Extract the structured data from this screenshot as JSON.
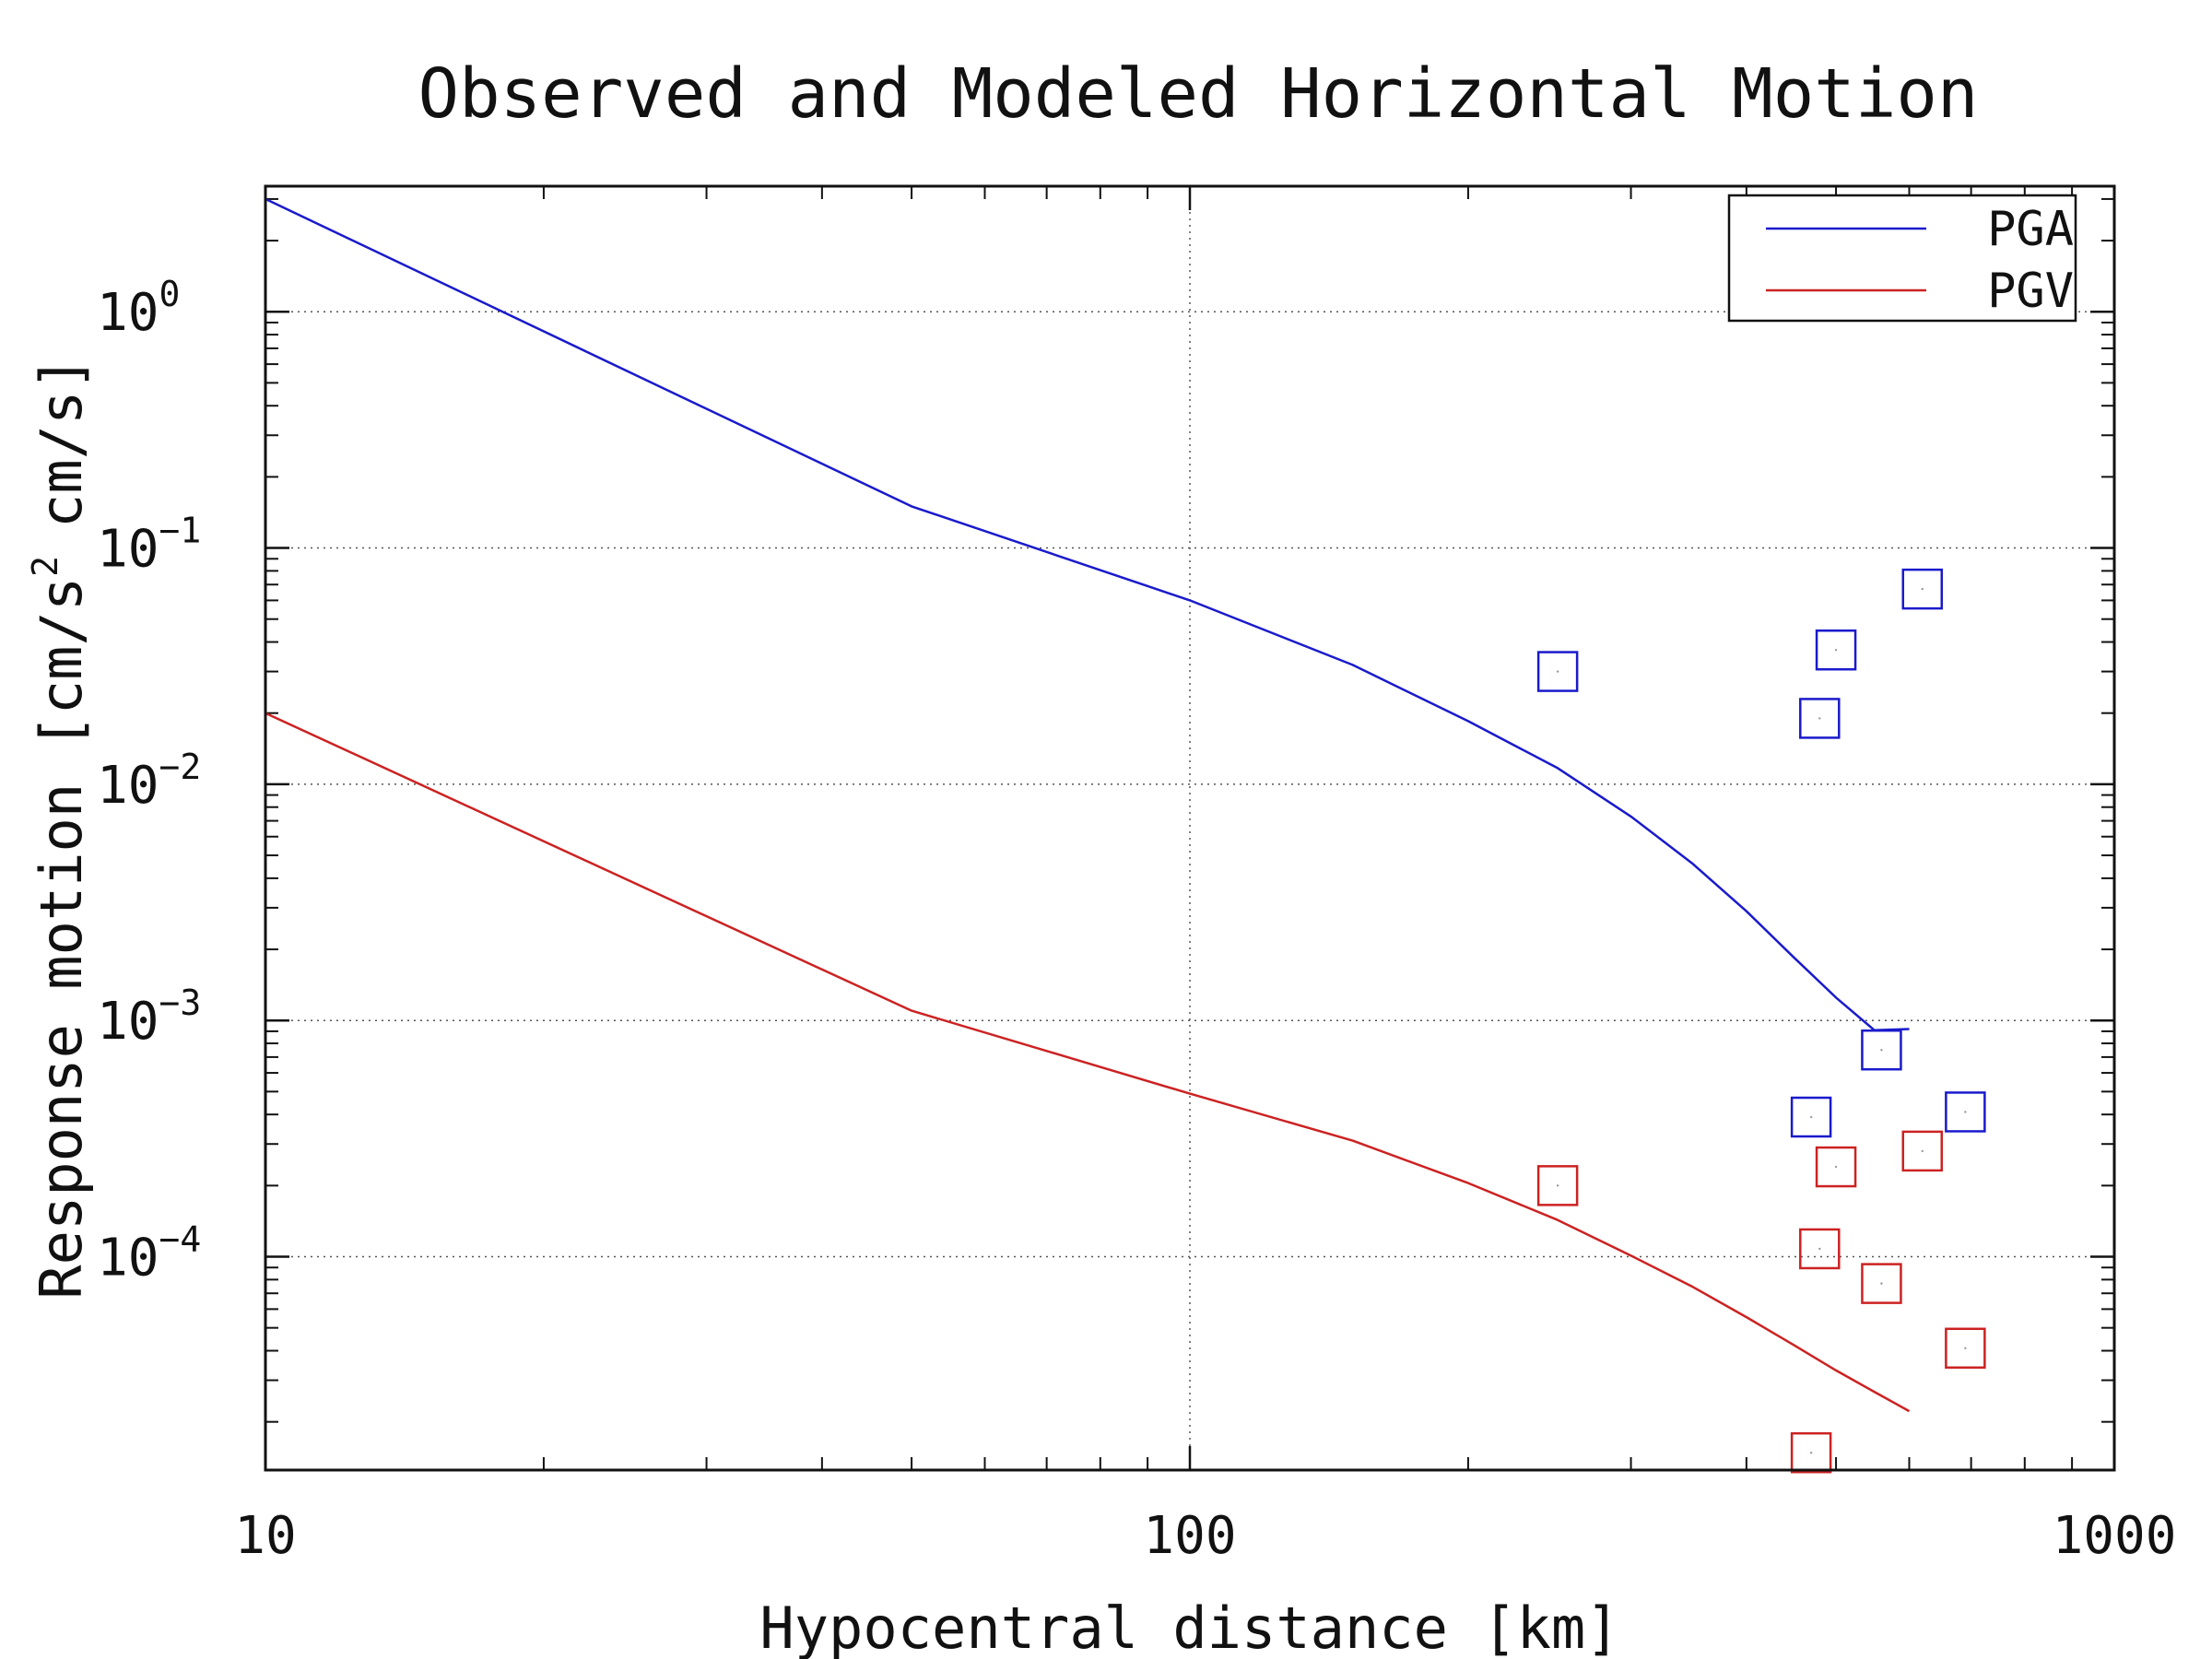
{
  "chart_data": {
    "type": "line",
    "title": "Observed and Modeled Horizontal Motion",
    "xlabel": "Hypocentral distance [km]",
    "ylabel_main": "Response motion [cm/s",
    "ylabel_sup": "2",
    "ylabel_tail": "cm/s]",
    "x_scale": "log",
    "y_scale": "log",
    "xlim": [
      10,
      1000
    ],
    "ylim": [
      1.25e-05,
      3.4
    ],
    "grid": true,
    "legend_position": "top-right",
    "x_ticks": [
      {
        "value": 10,
        "label": "10"
      },
      {
        "value": 100,
        "label": "100"
      },
      {
        "value": 1000,
        "label": "1000"
      }
    ],
    "y_ticks": [
      {
        "value": 1,
        "base": "10",
        "exp": "0"
      },
      {
        "value": 0.1,
        "base": "10",
        "exp": "−1"
      },
      {
        "value": 0.01,
        "base": "10",
        "exp": "−2"
      },
      {
        "value": 0.001,
        "base": "10",
        "exp": "−3"
      },
      {
        "value": 0.0001,
        "base": "10",
        "exp": "−4"
      }
    ],
    "series": [
      {
        "name": "PGA",
        "color": "#1a1acc",
        "line": {
          "x": [
            10,
            50,
            100,
            150,
            200,
            250,
            300,
            350,
            400,
            450,
            500,
            550,
            600
          ],
          "y": [
            3.0,
            0.15,
            0.06,
            0.032,
            0.0185,
            0.0117,
            0.0073,
            0.0046,
            0.0029,
            0.00185,
            0.00125,
            0.00091,
            0.00092
          ]
        },
        "observed": {
          "x": [
            250,
            500,
            480,
            620,
            560,
            470,
            690
          ],
          "y": [
            0.03,
            0.037,
            0.019,
            0.067,
            0.00075,
            0.00039,
            0.00041
          ]
        }
      },
      {
        "name": "PGV",
        "color": "#cc2222",
        "line": {
          "x": [
            10,
            50,
            100,
            150,
            200,
            250,
            300,
            350,
            400,
            450,
            500,
            550,
            600
          ],
          "y": [
            0.02,
            0.0011,
            0.00049,
            0.00031,
            0.000205,
            0.000143,
            0.000101,
            7.45e-05,
            5.55e-05,
            4.23e-05,
            3.3e-05,
            2.68e-05,
            2.22e-05
          ]
        },
        "observed": {
          "x": [
            250,
            500,
            480,
            620,
            560,
            690,
            470
          ],
          "y": [
            0.0002,
            0.00024,
            0.000108,
            0.00028,
            7.7e-05,
            4.1e-05,
            1.48e-05
          ]
        }
      }
    ]
  }
}
